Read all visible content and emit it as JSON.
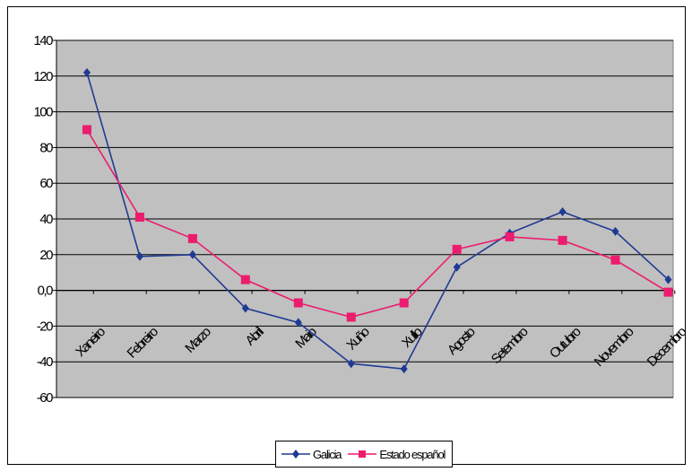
{
  "chart_data": {
    "type": "line",
    "title": "",
    "xlabel": "",
    "ylabel": "",
    "categories": [
      "Xaneiro",
      "Febreiro",
      "Marzo",
      "Abril",
      "Maio",
      "Xuño",
      "Xullo",
      "Agosto",
      "Setembro",
      "Outubro",
      "Novembro",
      "Decembro"
    ],
    "ylim": [
      -60,
      140
    ],
    "y_ticks": [
      "140",
      "120",
      "100",
      "80",
      "60",
      "40",
      "20",
      "0,0",
      "-20",
      "-40",
      "-60"
    ],
    "grid": true,
    "legend_position": "bottom",
    "plot_background": "#c0c0c0",
    "series": [
      {
        "name": "Galicia",
        "color": "#1f3a93",
        "marker": "diamond",
        "values": [
          122,
          19,
          20,
          -10,
          -18,
          -41,
          -44,
          13,
          32,
          44,
          33,
          6
        ]
      },
      {
        "name": "Estado español",
        "color": "#ec1c6e",
        "marker": "square",
        "values": [
          90,
          41,
          29,
          6,
          -7,
          -15,
          -7,
          23,
          30,
          28,
          17,
          -1
        ]
      }
    ]
  }
}
